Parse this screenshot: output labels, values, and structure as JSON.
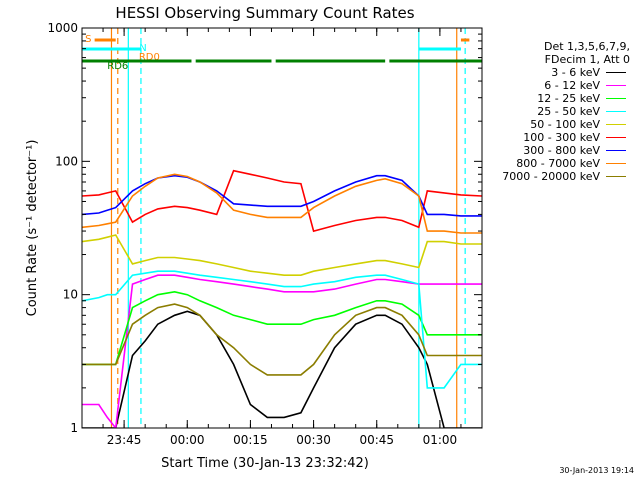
{
  "chart_data": {
    "type": "line",
    "title": "HESSI Observing Summary Count Rates",
    "xlabel": "Start Time (30-Jan-13 23:32:42)",
    "ylabel": "Count Rate (s⁻¹ detector⁻¹)",
    "yscale": "log",
    "ylim": [
      1,
      1000
    ],
    "xlim_minutes": [
      -10,
      85
    ],
    "x_ticks": [
      {
        "label": "23:45",
        "t": 0
      },
      {
        "label": "00:00",
        "t": 15
      },
      {
        "label": "00:15",
        "t": 30
      },
      {
        "label": "00:30",
        "t": 45
      },
      {
        "label": "00:45",
        "t": 60
      },
      {
        "label": "01:00",
        "t": 75
      }
    ],
    "y_ticks": [
      {
        "label": "1",
        "value": 1
      },
      {
        "label": "10",
        "value": 10
      },
      {
        "label": "100",
        "value": 100
      },
      {
        "label": "1000",
        "value": 1000
      }
    ],
    "legend_header": [
      "Det 1,3,5,6,7,9,",
      "FDecim 1, Att 0"
    ],
    "legend_placement": "right",
    "series": [
      {
        "name": "3 - 6 keV",
        "color": "#000000",
        "x": [
          -10,
          -6,
          -4,
          -2,
          2,
          5,
          8,
          12,
          15,
          18,
          22,
          26,
          30,
          34,
          38,
          42,
          45,
          50,
          55,
          60,
          62,
          66,
          70,
          72,
          76,
          80,
          85
        ],
        "y": [
          1,
          1,
          1,
          1,
          3.5,
          4.5,
          6,
          7,
          7.5,
          7,
          5,
          3,
          1.5,
          1.2,
          1.2,
          1.3,
          2,
          4,
          6,
          7,
          7,
          6,
          4,
          3,
          1,
          1,
          1
        ]
      },
      {
        "name": "6 - 12 keV",
        "color": "#ff00ff",
        "x": [
          -10,
          -6,
          -4,
          -2,
          2,
          5,
          8,
          12,
          15,
          18,
          22,
          26,
          30,
          34,
          38,
          42,
          45,
          50,
          55,
          60,
          62,
          66,
          70,
          72,
          76,
          80,
          85
        ],
        "y": [
          1.5,
          1.5,
          1.2,
          1,
          12,
          13,
          14,
          14,
          13.5,
          13,
          12.5,
          12,
          11.5,
          11,
          10.5,
          10.5,
          10.5,
          11,
          12,
          13,
          13,
          12.5,
          12,
          12,
          12,
          12,
          12
        ]
      },
      {
        "name": "12 - 25 keV",
        "color": "#00ff00",
        "x": [
          -10,
          -6,
          -4,
          -2,
          2,
          5,
          8,
          12,
          15,
          18,
          22,
          26,
          30,
          34,
          38,
          42,
          45,
          50,
          55,
          60,
          62,
          66,
          70,
          72,
          76,
          80,
          85
        ],
        "y": [
          3,
          3,
          3,
          3,
          8,
          9,
          10,
          10.5,
          10,
          9,
          8,
          7,
          6.5,
          6,
          6,
          6,
          6.5,
          7,
          8,
          9,
          9,
          8.5,
          7,
          5,
          5,
          5,
          5
        ]
      },
      {
        "name": "25 - 50 keV",
        "color": "#00ffff",
        "x": [
          -10,
          -6,
          -4,
          -2,
          2,
          5,
          8,
          12,
          15,
          18,
          22,
          26,
          30,
          34,
          38,
          42,
          45,
          50,
          55,
          60,
          62,
          66,
          70,
          72,
          76,
          80,
          85
        ],
        "y": [
          9,
          9.5,
          10,
          10,
          14,
          14.5,
          15,
          15,
          14.5,
          14,
          13.5,
          13,
          12.5,
          12,
          11.5,
          11.5,
          12,
          12.5,
          13.5,
          14,
          14,
          13,
          12,
          2,
          2,
          3,
          3
        ]
      },
      {
        "name": "50 - 100 keV",
        "color": "#d0d000",
        "x": [
          -10,
          -6,
          -4,
          -2,
          2,
          5,
          8,
          12,
          15,
          18,
          22,
          26,
          30,
          34,
          38,
          42,
          45,
          50,
          55,
          60,
          62,
          66,
          70,
          72,
          76,
          80,
          85
        ],
        "y": [
          25,
          26,
          27,
          28,
          17,
          18,
          19,
          19,
          18.5,
          18,
          17,
          16,
          15,
          14.5,
          14,
          14,
          15,
          16,
          17,
          18,
          18,
          17,
          16,
          25,
          25,
          24,
          24
        ]
      },
      {
        "name": "100 - 300 keV",
        "color": "#ff0000",
        "x": [
          -10,
          -6,
          -4,
          -2,
          2,
          5,
          8,
          12,
          15,
          18,
          22,
          26,
          30,
          34,
          38,
          42,
          45,
          50,
          55,
          60,
          62,
          66,
          70,
          72,
          76,
          80,
          85
        ],
        "y": [
          55,
          56,
          58,
          60,
          35,
          40,
          44,
          46,
          45,
          43,
          40,
          85,
          80,
          75,
          70,
          68,
          30,
          33,
          36,
          38,
          38,
          36,
          32,
          60,
          58,
          56,
          55
        ]
      },
      {
        "name": "300 - 800 keV",
        "color": "#0000ff",
        "x": [
          -10,
          -6,
          -4,
          -2,
          2,
          5,
          8,
          12,
          15,
          18,
          22,
          26,
          30,
          34,
          38,
          42,
          45,
          50,
          55,
          60,
          62,
          66,
          70,
          72,
          76,
          80,
          85
        ],
        "y": [
          40,
          41,
          43,
          45,
          60,
          68,
          75,
          78,
          76,
          70,
          60,
          48,
          47,
          46,
          46,
          46,
          50,
          60,
          70,
          78,
          78,
          72,
          55,
          40,
          40,
          39,
          39
        ]
      },
      {
        "name": "800 - 7000 keV",
        "color": "#ff8000",
        "x": [
          -10,
          -6,
          -4,
          -2,
          2,
          5,
          8,
          12,
          15,
          18,
          22,
          26,
          30,
          34,
          38,
          42,
          45,
          50,
          55,
          60,
          62,
          66,
          70,
          72,
          76,
          80,
          85
        ],
        "y": [
          32,
          33,
          34,
          35,
          55,
          65,
          75,
          80,
          77,
          70,
          58,
          43,
          40,
          38,
          38,
          38,
          45,
          55,
          65,
          72,
          74,
          68,
          55,
          30,
          30,
          29,
          29
        ]
      },
      {
        "name": "7000 - 20000 keV",
        "color": "#8b7d00",
        "x": [
          -10,
          -6,
          -4,
          -2,
          2,
          5,
          8,
          12,
          15,
          18,
          22,
          26,
          30,
          34,
          38,
          42,
          45,
          50,
          55,
          60,
          62,
          66,
          70,
          72,
          76,
          80,
          85
        ],
        "y": [
          3,
          3,
          3,
          3,
          6,
          7,
          8,
          8.5,
          8,
          7,
          5,
          4,
          3,
          2.5,
          2.5,
          2.5,
          3,
          5,
          7,
          8,
          8,
          7,
          5,
          3.5,
          3.5,
          3.5,
          3.5
        ]
      }
    ],
    "status_bars": [
      {
        "name": "S",
        "color": "#ff8000",
        "segments": [
          [
            -7,
            -2
          ],
          [
            80,
            82
          ]
        ]
      },
      {
        "name": "N",
        "color": "#00ffff",
        "segments": [
          [
            -10,
            4
          ],
          [
            70,
            80
          ]
        ]
      },
      {
        "name": "RD0",
        "color": "#ff8000",
        "segments": []
      },
      {
        "name": "RD6",
        "color": "#008000",
        "segments": [
          [
            -10,
            16
          ],
          [
            17,
            35
          ],
          [
            36,
            62
          ],
          [
            63,
            85
          ]
        ]
      }
    ],
    "vertical_markers": [
      {
        "t": -3,
        "color": "#ff8000",
        "style": "solid"
      },
      {
        "t": -1.5,
        "color": "#ff8000",
        "style": "dashed"
      },
      {
        "t": 1,
        "color": "#00ffff",
        "style": "solid"
      },
      {
        "t": 4,
        "color": "#00ffff",
        "style": "dashed"
      },
      {
        "t": 70,
        "color": "#00ffff",
        "style": "solid"
      },
      {
        "t": 79,
        "color": "#ff8000",
        "style": "solid"
      },
      {
        "t": 81,
        "color": "#00ffff",
        "style": "dashed"
      }
    ]
  },
  "timestamp": "30-Jan-2013 19:14"
}
